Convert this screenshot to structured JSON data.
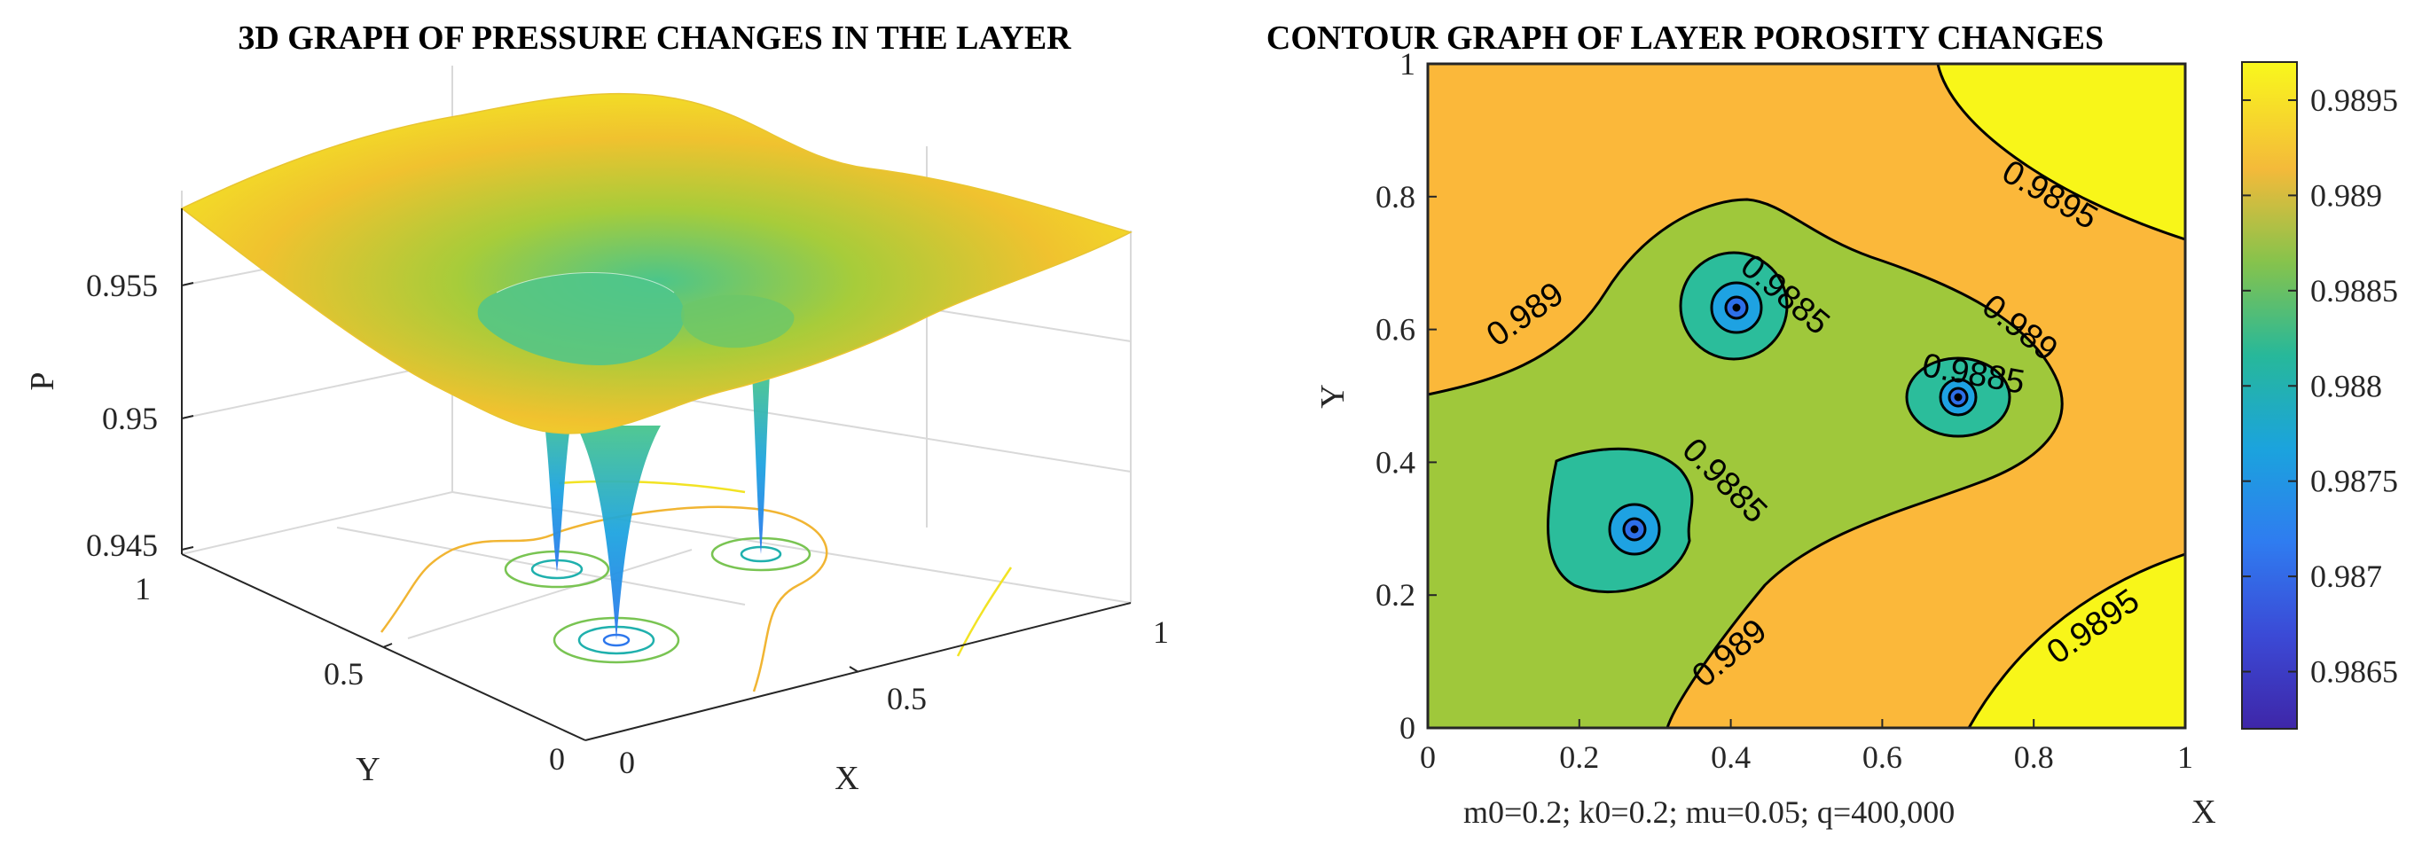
{
  "chart_data": [
    {
      "type": "surface3d",
      "title": "3D GRAPH OF PRESSURE CHANGES IN THE LAYER",
      "xlabel": "X",
      "ylabel": "Y",
      "zlabel": "P",
      "xlim": [
        0,
        1
      ],
      "ylim": [
        0,
        1
      ],
      "zlim": [
        0.945,
        0.958
      ],
      "x_ticks": [
        "0",
        "0.5",
        "1"
      ],
      "y_ticks": [
        "0",
        "0.5",
        "1"
      ],
      "z_ticks": [
        "0.945",
        "0.95",
        "0.955"
      ],
      "wells": [
        {
          "x": 0.27,
          "y": 0.3
        },
        {
          "x": 0.41,
          "y": 0.63
        },
        {
          "x": 0.7,
          "y": 0.5
        }
      ],
      "colormap": "parula",
      "grid": true
    },
    {
      "type": "contour",
      "title": "CONTOUR GRAPH OF LAYER POROSITY CHANGES",
      "xlabel": "X",
      "ylabel": "Y",
      "xlim": [
        0,
        1
      ],
      "ylim": [
        0,
        1
      ],
      "x_ticks": [
        "0",
        "0.2",
        "0.4",
        "0.6",
        "0.8",
        "1"
      ],
      "y_ticks": [
        "0",
        "0.2",
        "0.4",
        "0.6",
        "0.8",
        "1"
      ],
      "contour_labels": [
        {
          "text": "0.9895",
          "x": 0.82,
          "y": 0.8,
          "angle": 30
        },
        {
          "text": "0.9895",
          "x": 0.88,
          "y": 0.15,
          "angle": -35
        },
        {
          "text": "0.989",
          "x": 0.13,
          "y": 0.62,
          "angle": -35
        },
        {
          "text": "0.989",
          "x": 0.78,
          "y": 0.6,
          "angle": 38
        },
        {
          "text": "0.989",
          "x": 0.4,
          "y": 0.11,
          "angle": -40
        },
        {
          "text": "0.9885",
          "x": 0.47,
          "y": 0.65,
          "angle": 40
        },
        {
          "text": "0.9885",
          "x": 0.72,
          "y": 0.53,
          "angle": 10
        },
        {
          "text": "0.9885",
          "x": 0.39,
          "y": 0.37,
          "angle": 45
        }
      ],
      "colorbar": {
        "ticks": [
          "0.9865",
          "0.987",
          "0.9875",
          "0.988",
          "0.9885",
          "0.989",
          "0.9895"
        ],
        "min": 0.9862,
        "max": 0.9897
      },
      "levels": {
        "0.9862": "#3e26a8",
        "0.9867": "#2d6ee8",
        "0.9873": "#1ea2e2",
        "0.9878": "#1ab8b4",
        "0.9882": "#2bbd94",
        "0.9887": "#9fc83b",
        "0.9892": "#fbba39",
        "0.9897": "#f8f619"
      },
      "grid": false
    }
  ],
  "footnote": "m0=0.2;  k0=0.2;  mu=0.05;  q=400,000"
}
